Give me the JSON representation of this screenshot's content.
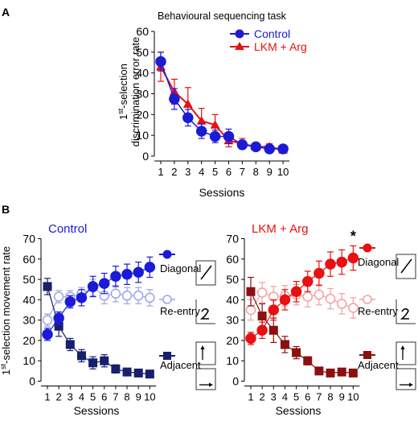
{
  "colors": {
    "control": "#1b1bd6",
    "lkm": "#e81010",
    "control_dark": "#16206b",
    "lkm_dark": "#8b1010",
    "control_light": "#9aa6e8",
    "lkm_light": "#f2a0a0"
  },
  "panel_a": {
    "label": "A",
    "title": "Behavioural sequencing task",
    "ylabel_line1_sup": "st",
    "ylabel_line1_pre": "1",
    "ylabel_line1_post": "-selection",
    "ylabel_line2": "discrimination error rate",
    "xlabel": "Sessions",
    "legend": [
      "Control",
      "LKM + Arg"
    ]
  },
  "panel_b": {
    "label": "B",
    "ylabel_pre": "1",
    "ylabel_sup": "st",
    "ylabel_post": "-selection movement  rate",
    "left_title": "Control",
    "right_title": "LKM + Arg",
    "xlabel": "Sessions",
    "legend_labels": [
      "Diagonal",
      "Re-entry",
      "Adjacent"
    ],
    "significance": "*",
    "icons": [
      "diagonal-icon",
      "re-entry-icon",
      "adjacent-up-icon",
      "adjacent-right-icon"
    ]
  },
  "chart_data": [
    {
      "type": "line",
      "title": "Behavioural sequencing task",
      "xlabel": "Sessions",
      "ylabel": "1st-selection discrimination error rate",
      "x": [
        1,
        2,
        3,
        4,
        5,
        6,
        7,
        8,
        9,
        10
      ],
      "ylim": [
        0,
        60
      ],
      "yticks": [
        0,
        10,
        20,
        30,
        40,
        50,
        60
      ],
      "legend_position": "top-right",
      "series": [
        {
          "name": "Control",
          "marker": "circle",
          "values": [
            45.5,
            27.5,
            18.5,
            12,
            9.5,
            9.5,
            5.5,
            4.5,
            3.5,
            3.5
          ],
          "err": [
            4.5,
            5,
            4,
            3.5,
            3,
            3.5,
            2,
            1.5,
            1.5,
            1.5
          ]
        },
        {
          "name": "LKM + Arg",
          "marker": "triangle",
          "values": [
            43,
            31,
            25,
            17,
            15,
            7.5,
            6,
            4.5,
            4.5,
            3
          ],
          "err": [
            7,
            6,
            8,
            6,
            5,
            3,
            2.5,
            1.5,
            1.5,
            1.5
          ]
        }
      ]
    },
    {
      "type": "line",
      "title": "Control",
      "xlabel": "Sessions",
      "ylabel": "1st-selection movement  rate",
      "x": [
        1,
        2,
        3,
        4,
        5,
        6,
        7,
        8,
        9,
        10
      ],
      "ylim": [
        0,
        70
      ],
      "yticks": [
        0,
        10,
        20,
        30,
        40,
        50,
        60,
        70
      ],
      "series": [
        {
          "name": "Diagonal",
          "style": "filled-circle",
          "values": [
            23,
            31,
            39,
            41,
            46.5,
            48,
            51.5,
            52.5,
            53.5,
            56
          ],
          "err": [
            3,
            3,
            3,
            4,
            5,
            5,
            5,
            5,
            5,
            5
          ]
        },
        {
          "name": "Re-entry",
          "style": "open-circle",
          "values": [
            30,
            41.5,
            41.5,
            43,
            46,
            42,
            43,
            42,
            42,
            41
          ],
          "err": [
            3,
            3,
            3,
            3,
            4,
            4,
            4,
            4,
            4,
            4
          ]
        },
        {
          "name": "Adjacent",
          "style": "filled-square",
          "values": [
            46.5,
            27,
            18,
            12.5,
            9,
            10,
            6,
            4.5,
            4,
            3.5
          ],
          "err": [
            4,
            5,
            3,
            3,
            3,
            3,
            2,
            1.5,
            1.5,
            1.5
          ]
        }
      ]
    },
    {
      "type": "line",
      "title": "LKM + Arg",
      "xlabel": "Sessions",
      "ylabel": "1st-selection movement  rate",
      "x": [
        1,
        2,
        3,
        4,
        5,
        6,
        7,
        8,
        9,
        10
      ],
      "ylim": [
        0,
        70
      ],
      "yticks": [
        0,
        10,
        20,
        30,
        40,
        50,
        60,
        70
      ],
      "series": [
        {
          "name": "Diagonal",
          "style": "filled-circle",
          "values": [
            21,
            25,
            35,
            40,
            44,
            49,
            53,
            57.5,
            58.5,
            60.5
          ],
          "err": [
            3,
            4,
            5,
            5,
            5,
            5,
            6,
            6,
            6,
            6
          ]
        },
        {
          "name": "Re-entry",
          "style": "open-circle",
          "values": [
            35,
            43.5,
            41.5,
            42,
            42.5,
            41.5,
            42.5,
            40.5,
            38,
            36
          ],
          "err": [
            5,
            5,
            5,
            5,
            5,
            5,
            5,
            5,
            5,
            5
          ]
        },
        {
          "name": "Adjacent",
          "style": "filled-square",
          "values": [
            44,
            32,
            25,
            18,
            14,
            10,
            5,
            4,
            4.5,
            4
          ],
          "err": [
            7,
            6,
            6,
            4,
            3,
            2,
            1.5,
            1.5,
            1.5,
            1.5
          ]
        }
      ],
      "annotation": {
        "text": "*",
        "x": 10
      }
    }
  ]
}
